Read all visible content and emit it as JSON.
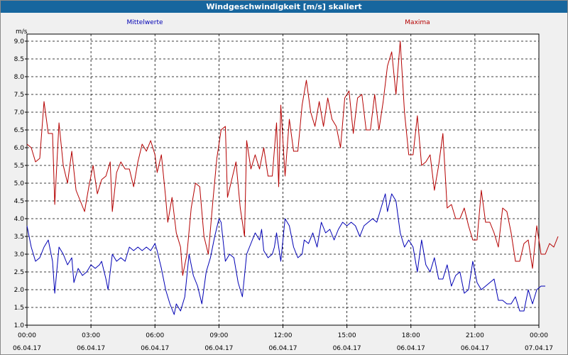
{
  "window": {
    "title": "Windgeschwindigkeit [m/s] skaliert"
  },
  "chart_data": {
    "type": "line",
    "title": "Windgeschwindigkeit [m/s] skaliert",
    "ylabel": "m/s",
    "xlabel": "",
    "ylim": [
      1.0,
      9.2
    ],
    "xlim": [
      0,
      24
    ],
    "grid": true,
    "y_ticks": [
      "1.0",
      "1.5",
      "2.0",
      "2.5",
      "3.0",
      "3.5",
      "4.0",
      "4.5",
      "5.0",
      "5.5",
      "6.0",
      "6.5",
      "7.0",
      "7.5",
      "8.0",
      "8.5",
      "9.0"
    ],
    "x_ticks": [
      {
        "time": "00:00",
        "date": "06.04.17"
      },
      {
        "time": "03:00",
        "date": "06.04.17"
      },
      {
        "time": "06:00",
        "date": "06.04.17"
      },
      {
        "time": "09:00",
        "date": "06.04.17"
      },
      {
        "time": "12:00",
        "date": "06.04.17"
      },
      {
        "time": "15:00",
        "date": "06.04.17"
      },
      {
        "time": "18:00",
        "date": "06.04.17"
      },
      {
        "time": "21:00",
        "date": "06.04.17"
      },
      {
        "time": "00:00",
        "date": "07.04.17"
      }
    ],
    "series": [
      {
        "name": "Mittelwerte",
        "color": "#0000b4",
        "points": [
          [
            0,
            3.8
          ],
          [
            0.2,
            3.2
          ],
          [
            0.4,
            2.8
          ],
          [
            0.6,
            2.9
          ],
          [
            0.8,
            3.2
          ],
          [
            1.0,
            3.4
          ],
          [
            1.2,
            2.8
          ],
          [
            1.3,
            1.9
          ],
          [
            1.5,
            3.2
          ],
          [
            1.7,
            3.0
          ],
          [
            1.9,
            2.7
          ],
          [
            2.1,
            2.9
          ],
          [
            2.2,
            2.2
          ],
          [
            2.4,
            2.6
          ],
          [
            2.6,
            2.4
          ],
          [
            2.8,
            2.5
          ],
          [
            3.0,
            2.7
          ],
          [
            3.2,
            2.6
          ],
          [
            3.4,
            2.7
          ],
          [
            3.5,
            2.8
          ],
          [
            3.7,
            2.3
          ],
          [
            3.8,
            2.0
          ],
          [
            4.0,
            3.0
          ],
          [
            4.2,
            2.8
          ],
          [
            4.4,
            2.9
          ],
          [
            4.6,
            2.8
          ],
          [
            4.8,
            3.2
          ],
          [
            5.0,
            3.1
          ],
          [
            5.2,
            3.2
          ],
          [
            5.4,
            3.1
          ],
          [
            5.6,
            3.2
          ],
          [
            5.8,
            3.1
          ],
          [
            6.0,
            3.3
          ],
          [
            6.1,
            3.1
          ],
          [
            6.3,
            2.6
          ],
          [
            6.5,
            2.0
          ],
          [
            6.7,
            1.6
          ],
          [
            6.9,
            1.3
          ],
          [
            7.0,
            1.6
          ],
          [
            7.2,
            1.4
          ],
          [
            7.4,
            1.8
          ],
          [
            7.6,
            3.0
          ],
          [
            7.8,
            2.4
          ],
          [
            8.0,
            2.1
          ],
          [
            8.2,
            1.6
          ],
          [
            8.4,
            2.5
          ],
          [
            8.6,
            2.9
          ],
          [
            8.8,
            3.5
          ],
          [
            9.0,
            4.0
          ],
          [
            9.1,
            3.9
          ],
          [
            9.3,
            2.8
          ],
          [
            9.5,
            3.0
          ],
          [
            9.7,
            2.9
          ],
          [
            9.9,
            2.2
          ],
          [
            10.1,
            1.8
          ],
          [
            10.3,
            3.0
          ],
          [
            10.5,
            3.3
          ],
          [
            10.7,
            3.6
          ],
          [
            10.9,
            3.4
          ],
          [
            11.0,
            3.7
          ],
          [
            11.1,
            3.1
          ],
          [
            11.3,
            2.9
          ],
          [
            11.5,
            3.0
          ],
          [
            11.6,
            3.2
          ],
          [
            11.7,
            3.6
          ],
          [
            11.9,
            2.8
          ],
          [
            12.1,
            4.0
          ],
          [
            12.3,
            3.8
          ],
          [
            12.5,
            3.2
          ],
          [
            12.7,
            2.9
          ],
          [
            12.9,
            3.0
          ],
          [
            13.0,
            3.4
          ],
          [
            13.2,
            3.3
          ],
          [
            13.4,
            3.6
          ],
          [
            13.6,
            3.2
          ],
          [
            13.8,
            3.9
          ],
          [
            14.0,
            3.6
          ],
          [
            14.2,
            3.7
          ],
          [
            14.4,
            3.4
          ],
          [
            14.6,
            3.7
          ],
          [
            14.8,
            3.9
          ],
          [
            15.0,
            3.8
          ],
          [
            15.2,
            3.9
          ],
          [
            15.4,
            3.8
          ],
          [
            15.6,
            3.5
          ],
          [
            15.8,
            3.8
          ],
          [
            16.0,
            3.9
          ],
          [
            16.2,
            4.0
          ],
          [
            16.4,
            3.9
          ],
          [
            16.6,
            4.3
          ],
          [
            16.8,
            4.7
          ],
          [
            16.9,
            4.2
          ],
          [
            17.1,
            4.7
          ],
          [
            17.3,
            4.5
          ],
          [
            17.5,
            3.6
          ],
          [
            17.7,
            3.2
          ],
          [
            17.9,
            3.4
          ],
          [
            18.1,
            3.2
          ],
          [
            18.3,
            2.5
          ],
          [
            18.5,
            3.4
          ],
          [
            18.7,
            2.7
          ],
          [
            18.9,
            2.5
          ],
          [
            19.1,
            2.9
          ],
          [
            19.3,
            2.3
          ],
          [
            19.5,
            2.3
          ],
          [
            19.7,
            2.7
          ],
          [
            19.9,
            2.1
          ],
          [
            20.1,
            2.4
          ],
          [
            20.3,
            2.5
          ],
          [
            20.5,
            1.9
          ],
          [
            20.7,
            2.0
          ],
          [
            20.9,
            2.8
          ],
          [
            21.1,
            2.2
          ],
          [
            21.3,
            2.0
          ],
          [
            21.5,
            2.1
          ],
          [
            21.7,
            2.2
          ],
          [
            21.9,
            2.3
          ],
          [
            22.1,
            1.7
          ],
          [
            22.3,
            1.7
          ],
          [
            22.5,
            1.6
          ],
          [
            22.7,
            1.6
          ],
          [
            22.9,
            1.8
          ],
          [
            23.1,
            1.4
          ],
          [
            23.3,
            1.4
          ],
          [
            23.5,
            2.0
          ],
          [
            23.7,
            1.6
          ],
          [
            23.9,
            2.0
          ],
          [
            24.1,
            2.1
          ],
          [
            24.3,
            2.1
          ]
        ]
      },
      {
        "name": "Maxima",
        "color": "#b40000",
        "points": [
          [
            0,
            6.1
          ],
          [
            0.2,
            6.0
          ],
          [
            0.4,
            5.6
          ],
          [
            0.6,
            5.7
          ],
          [
            0.8,
            7.3
          ],
          [
            1.0,
            6.4
          ],
          [
            1.2,
            6.4
          ],
          [
            1.3,
            4.4
          ],
          [
            1.5,
            6.7
          ],
          [
            1.7,
            5.5
          ],
          [
            1.9,
            5.0
          ],
          [
            2.1,
            5.9
          ],
          [
            2.3,
            4.8
          ],
          [
            2.5,
            4.5
          ],
          [
            2.7,
            4.2
          ],
          [
            2.9,
            4.9
          ],
          [
            3.1,
            5.5
          ],
          [
            3.3,
            4.7
          ],
          [
            3.5,
            5.1
          ],
          [
            3.7,
            5.2
          ],
          [
            3.9,
            5.6
          ],
          [
            4.0,
            4.2
          ],
          [
            4.2,
            5.3
          ],
          [
            4.4,
            5.6
          ],
          [
            4.6,
            5.4
          ],
          [
            4.8,
            5.4
          ],
          [
            5.0,
            4.9
          ],
          [
            5.2,
            5.6
          ],
          [
            5.4,
            6.1
          ],
          [
            5.6,
            5.9
          ],
          [
            5.8,
            6.2
          ],
          [
            6.0,
            5.8
          ],
          [
            6.1,
            5.3
          ],
          [
            6.3,
            5.8
          ],
          [
            6.5,
            4.6
          ],
          [
            6.6,
            3.9
          ],
          [
            6.8,
            4.6
          ],
          [
            7.0,
            3.6
          ],
          [
            7.2,
            3.2
          ],
          [
            7.3,
            2.4
          ],
          [
            7.5,
            3.0
          ],
          [
            7.7,
            4.3
          ],
          [
            7.9,
            5.0
          ],
          [
            8.1,
            4.9
          ],
          [
            8.3,
            3.5
          ],
          [
            8.5,
            3.0
          ],
          [
            8.7,
            4.4
          ],
          [
            8.9,
            5.7
          ],
          [
            9.1,
            6.5
          ],
          [
            9.3,
            6.6
          ],
          [
            9.4,
            4.6
          ],
          [
            9.6,
            5.1
          ],
          [
            9.8,
            5.6
          ],
          [
            10.0,
            4.3
          ],
          [
            10.2,
            3.5
          ],
          [
            10.3,
            6.2
          ],
          [
            10.5,
            5.4
          ],
          [
            10.7,
            5.8
          ],
          [
            10.9,
            5.4
          ],
          [
            11.1,
            6.0
          ],
          [
            11.3,
            5.2
          ],
          [
            11.5,
            5.2
          ],
          [
            11.7,
            6.7
          ],
          [
            11.8,
            4.9
          ],
          [
            11.9,
            7.2
          ],
          [
            12.1,
            5.2
          ],
          [
            12.3,
            6.8
          ],
          [
            12.5,
            5.9
          ],
          [
            12.7,
            5.9
          ],
          [
            12.9,
            7.2
          ],
          [
            13.1,
            7.9
          ],
          [
            13.3,
            7.0
          ],
          [
            13.5,
            6.6
          ],
          [
            13.7,
            7.3
          ],
          [
            13.9,
            6.6
          ],
          [
            14.1,
            7.4
          ],
          [
            14.3,
            6.8
          ],
          [
            14.5,
            6.6
          ],
          [
            14.7,
            6.0
          ],
          [
            14.9,
            7.4
          ],
          [
            15.1,
            7.6
          ],
          [
            15.3,
            6.4
          ],
          [
            15.5,
            7.4
          ],
          [
            15.7,
            7.5
          ],
          [
            15.9,
            6.5
          ],
          [
            16.1,
            6.5
          ],
          [
            16.3,
            7.5
          ],
          [
            16.5,
            6.5
          ],
          [
            16.7,
            7.3
          ],
          [
            16.9,
            8.3
          ],
          [
            17.1,
            8.7
          ],
          [
            17.3,
            7.5
          ],
          [
            17.5,
            9.0
          ],
          [
            17.7,
            7.0
          ],
          [
            17.9,
            5.8
          ],
          [
            18.1,
            5.8
          ],
          [
            18.3,
            6.9
          ],
          [
            18.5,
            5.5
          ],
          [
            18.7,
            5.6
          ],
          [
            18.9,
            5.8
          ],
          [
            19.1,
            4.8
          ],
          [
            19.3,
            5.5
          ],
          [
            19.5,
            6.4
          ],
          [
            19.7,
            4.3
          ],
          [
            19.9,
            4.4
          ],
          [
            20.1,
            4.0
          ],
          [
            20.3,
            4.0
          ],
          [
            20.5,
            4.3
          ],
          [
            20.7,
            3.8
          ],
          [
            20.9,
            3.4
          ],
          [
            21.1,
            3.4
          ],
          [
            21.3,
            4.8
          ],
          [
            21.5,
            3.9
          ],
          [
            21.7,
            3.9
          ],
          [
            21.9,
            3.6
          ],
          [
            22.1,
            3.2
          ],
          [
            22.3,
            4.3
          ],
          [
            22.5,
            4.2
          ],
          [
            22.7,
            3.6
          ],
          [
            22.9,
            2.8
          ],
          [
            23.1,
            2.8
          ],
          [
            23.3,
            3.3
          ],
          [
            23.5,
            3.4
          ],
          [
            23.7,
            2.6
          ],
          [
            23.9,
            3.8
          ],
          [
            24.1,
            3.0
          ],
          [
            24.3,
            3.0
          ],
          [
            24.5,
            3.3
          ],
          [
            24.7,
            3.2
          ],
          [
            24.9,
            3.5
          ]
        ]
      }
    ]
  }
}
